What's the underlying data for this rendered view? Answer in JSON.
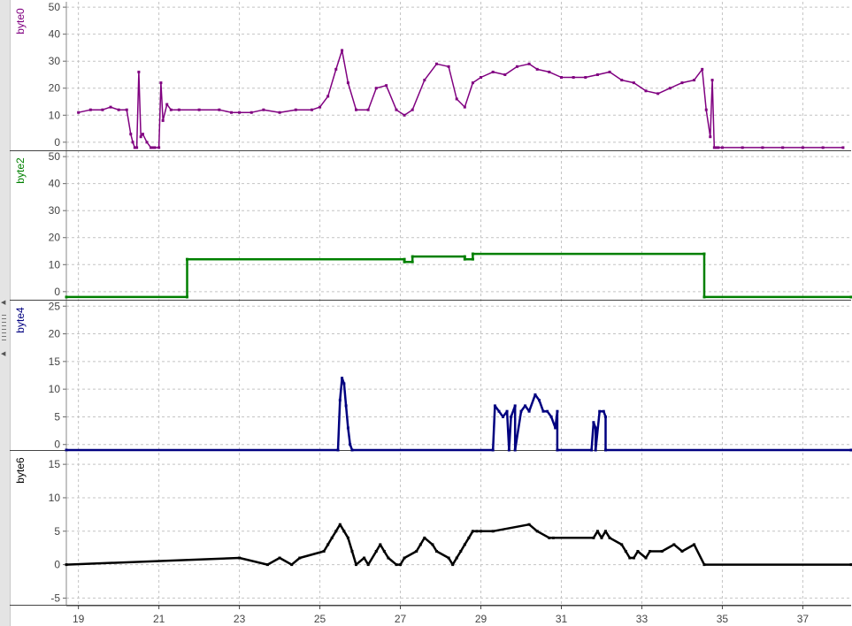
{
  "chart_data": [
    {
      "type": "line",
      "ylabel": "byte0",
      "color": "#800080",
      "ylim": [
        -3,
        52
      ],
      "yticks": [
        0,
        10,
        20,
        30,
        40,
        50
      ],
      "xlim": [
        18.7,
        38.2
      ],
      "series": [
        {
          "name": "byte0",
          "x": [
            19.0,
            19.3,
            19.6,
            19.8,
            20.0,
            20.2,
            20.3,
            20.35,
            20.4,
            20.45,
            20.5,
            20.55,
            20.6,
            20.7,
            20.8,
            20.85,
            20.9,
            21.0,
            21.05,
            21.1,
            21.2,
            21.3,
            21.5,
            22.0,
            22.5,
            22.8,
            23.0,
            23.3,
            23.6,
            24.0,
            24.4,
            24.8,
            25.0,
            25.2,
            25.4,
            25.55,
            25.7,
            25.9,
            26.2,
            26.4,
            26.65,
            26.9,
            27.1,
            27.3,
            27.6,
            27.9,
            28.2,
            28.4,
            28.6,
            28.8,
            29.0,
            29.3,
            29.6,
            29.9,
            30.2,
            30.4,
            30.7,
            31.0,
            31.3,
            31.6,
            31.9,
            32.2,
            32.5,
            32.8,
            33.1,
            33.4,
            33.7,
            34.0,
            34.3,
            34.5,
            34.6,
            34.7,
            34.75,
            34.8,
            34.85,
            34.9,
            35.0,
            35.5,
            36.0,
            36.5,
            37.0,
            37.5,
            38.0
          ],
          "y": [
            11,
            12,
            12,
            13,
            12,
            12,
            3,
            0,
            -2,
            -2,
            26,
            2,
            3,
            0,
            -2,
            -2,
            -2,
            -2,
            22,
            8,
            14,
            12,
            12,
            12,
            12,
            11,
            11,
            11,
            12,
            11,
            12,
            12,
            13,
            17,
            27,
            34,
            22,
            12,
            12,
            20,
            21,
            12,
            10,
            12,
            23,
            29,
            28,
            16,
            13,
            22,
            24,
            26,
            25,
            28,
            29,
            27,
            26,
            24,
            24,
            24,
            25,
            26,
            23,
            22,
            19,
            18,
            20,
            22,
            23,
            27,
            12,
            2,
            23,
            -2,
            -2,
            -2,
            -2,
            -2,
            -2,
            -2,
            -2,
            -2,
            -2
          ]
        }
      ]
    },
    {
      "type": "line",
      "ylabel": "byte2",
      "color": "#008000",
      "ylim": [
        -3,
        52
      ],
      "yticks": [
        0,
        10,
        20,
        30,
        40,
        50
      ],
      "xlim": [
        18.7,
        38.2
      ],
      "series": [
        {
          "name": "byte2",
          "x": [
            18.7,
            21.7,
            21.7,
            27.1,
            27.1,
            27.3,
            27.3,
            28.6,
            28.6,
            28.8,
            28.8,
            34.55,
            34.55,
            38.2
          ],
          "y": [
            -2,
            -2,
            12,
            12,
            11,
            11,
            13,
            13,
            12,
            12,
            14,
            14,
            -2,
            -2
          ]
        }
      ]
    },
    {
      "type": "line",
      "ylabel": "byte4",
      "color": "#000080",
      "ylim": [
        -1,
        26
      ],
      "yticks": [
        0,
        5,
        10,
        15,
        20,
        25
      ],
      "xlim": [
        18.7,
        38.2
      ],
      "series": [
        {
          "name": "byte4",
          "x": [
            18.7,
            25.45,
            25.5,
            25.55,
            25.6,
            25.65,
            25.7,
            25.75,
            25.8,
            25.8,
            29.3,
            29.35,
            29.45,
            29.55,
            29.65,
            29.7,
            29.75,
            29.85,
            29.85,
            30.0,
            30.1,
            30.2,
            30.35,
            30.45,
            30.55,
            30.65,
            30.75,
            30.85,
            30.9,
            30.9,
            31.75,
            31.8,
            31.85,
            31.85,
            31.95,
            32.05,
            32.1,
            32.1,
            38.2
          ],
          "y": [
            -1,
            -1,
            8,
            12,
            11,
            7,
            3,
            0,
            -1,
            -1,
            -1,
            7,
            6,
            5,
            6,
            -1,
            5,
            7,
            -1,
            6,
            7,
            6,
            9,
            8,
            6,
            6,
            5,
            3,
            6,
            -1,
            -1,
            4,
            3,
            -1,
            6,
            6,
            5,
            -1,
            -1
          ]
        }
      ]
    },
    {
      "type": "line",
      "ylabel": "byte6",
      "color": "#000000",
      "ylim": [
        -6,
        17
      ],
      "yticks": [
        -5,
        0,
        5,
        10,
        15
      ],
      "xlim": [
        18.7,
        38.2
      ],
      "series": [
        {
          "name": "byte6",
          "x": [
            18.7,
            23.0,
            23.7,
            24.0,
            24.3,
            24.5,
            25.1,
            25.2,
            25.3,
            25.4,
            25.5,
            25.6,
            25.7,
            25.8,
            25.9,
            26.1,
            26.2,
            26.4,
            26.5,
            26.6,
            26.7,
            26.9,
            27.0,
            27.1,
            27.4,
            27.5,
            27.6,
            27.8,
            27.9,
            28.2,
            28.3,
            28.4,
            28.5,
            28.6,
            28.7,
            28.8,
            28.9,
            29.0,
            29.3,
            30.2,
            30.4,
            30.7,
            30.8,
            31.8,
            31.9,
            32.0,
            32.1,
            32.2,
            32.5,
            32.6,
            32.7,
            32.8,
            32.9,
            33.1,
            33.2,
            33.5,
            33.8,
            34.0,
            34.3,
            34.55,
            38.2
          ],
          "y": [
            0,
            1,
            0,
            1,
            0,
            1,
            2,
            3,
            4,
            5,
            6,
            5,
            4,
            2,
            0,
            1,
            0,
            2,
            3,
            2,
            1,
            0,
            0,
            1,
            2,
            3,
            4,
            3,
            2,
            1,
            0,
            1,
            2,
            3,
            4,
            5,
            5,
            5,
            5,
            6,
            5,
            4,
            4,
            4,
            5,
            4,
            5,
            4,
            3,
            2,
            1,
            1,
            2,
            1,
            2,
            2,
            3,
            2,
            3,
            0,
            0
          ]
        }
      ]
    }
  ],
  "x_axis": {
    "tick_labels": [
      "19",
      "21",
      "23",
      "25",
      "27",
      "29",
      "31",
      "33",
      "35",
      "37"
    ],
    "tick_values": [
      19,
      21,
      23,
      25,
      27,
      29,
      31,
      33,
      35,
      37
    ]
  },
  "grid": true,
  "background": "#ffffff",
  "grid_color": "#c4c4c4",
  "splitter_arrows": [
    "◀",
    "◀"
  ]
}
